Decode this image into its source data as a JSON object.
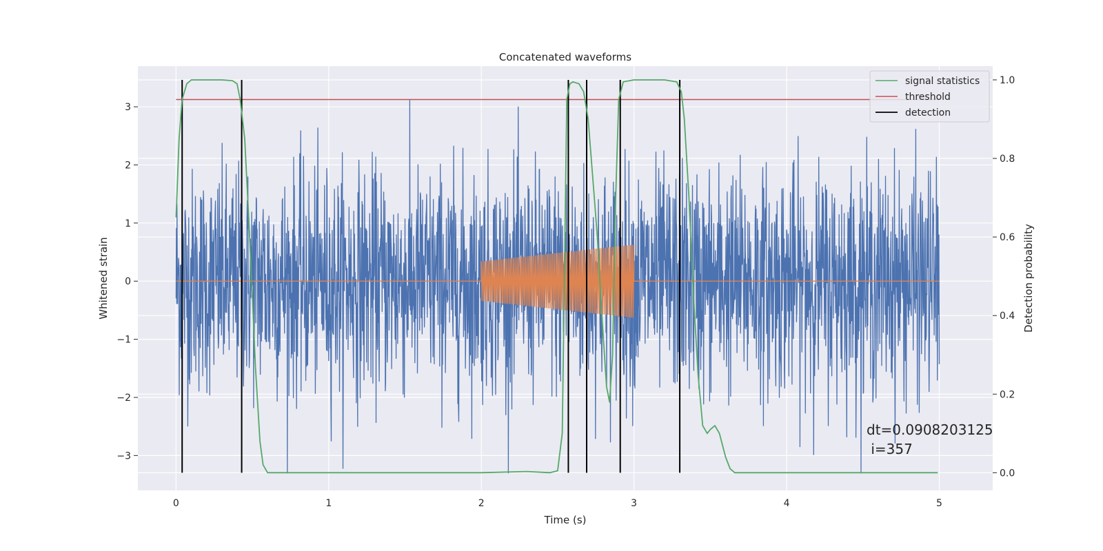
{
  "chart_data": {
    "type": "line",
    "title": "Concatenated waveforms",
    "xlabel": "Time (s)",
    "ylabel": "Whitened strain",
    "y2label": "Detection probability",
    "xlim": [
      -0.25,
      5.35
    ],
    "ylim": [
      -3.6,
      3.7
    ],
    "y2lim": [
      -0.045,
      1.035
    ],
    "xticks": [
      0,
      1,
      2,
      3,
      4,
      5
    ],
    "xtick_labels": [
      "0",
      "1",
      "2",
      "3",
      "4",
      "5"
    ],
    "yticks": [
      -3,
      -2,
      -1,
      0,
      1,
      2,
      3
    ],
    "ytick_labels": [
      "−3",
      "−2",
      "−1",
      "0",
      "1",
      "2",
      "3"
    ],
    "y2ticks": [
      0.0,
      0.2,
      0.4,
      0.6,
      0.8,
      1.0
    ],
    "y2tick_labels": [
      "0.0",
      "0.2",
      "0.4",
      "0.6",
      "0.8",
      "1.0"
    ],
    "grid": true,
    "legend_position": "top-right",
    "colors": {
      "strain": "#4c72b0",
      "injection": "#dd8452",
      "signal_statistics": "#55a868",
      "threshold": "#c44e52",
      "detection": "#000000",
      "plot_background": "#eaeaf2",
      "grid": "#ffffff"
    },
    "noise_series": {
      "axis": "left",
      "x_range": [
        0,
        5
      ],
      "amplitude_range": [
        -3.3,
        3.3
      ]
    },
    "injection_series": {
      "axis": "left",
      "x_range": [
        2.0,
        3.0
      ],
      "amplitude_start": 0.34,
      "amplitude_end": 0.63
    },
    "series": [
      {
        "name": "signal statistics",
        "axis": "right",
        "points": [
          [
            0.0,
            0.65
          ],
          [
            0.02,
            0.85
          ],
          [
            0.04,
            0.95
          ],
          [
            0.07,
            0.99
          ],
          [
            0.1,
            1.0
          ],
          [
            0.2,
            1.0
          ],
          [
            0.3,
            1.0
          ],
          [
            0.37,
            0.998
          ],
          [
            0.4,
            0.99
          ],
          [
            0.42,
            0.95
          ],
          [
            0.45,
            0.85
          ],
          [
            0.48,
            0.62
          ],
          [
            0.5,
            0.45
          ],
          [
            0.52,
            0.27
          ],
          [
            0.55,
            0.08
          ],
          [
            0.57,
            0.02
          ],
          [
            0.6,
            0.0
          ],
          [
            1.0,
            0.0
          ],
          [
            1.5,
            0.0
          ],
          [
            2.0,
            0.0
          ],
          [
            2.3,
            0.003
          ],
          [
            2.45,
            0.0
          ],
          [
            2.5,
            0.005
          ],
          [
            2.53,
            0.1
          ],
          [
            2.56,
            0.95
          ],
          [
            2.58,
            0.99
          ],
          [
            2.6,
            0.995
          ],
          [
            2.64,
            0.99
          ],
          [
            2.67,
            0.97
          ],
          [
            2.7,
            0.9
          ],
          [
            2.73,
            0.75
          ],
          [
            2.76,
            0.6
          ],
          [
            2.79,
            0.4
          ],
          [
            2.82,
            0.22
          ],
          [
            2.84,
            0.18
          ],
          [
            2.86,
            0.3
          ],
          [
            2.88,
            0.7
          ],
          [
            2.9,
            0.95
          ],
          [
            2.93,
            0.995
          ],
          [
            3.0,
            1.0
          ],
          [
            3.2,
            1.0
          ],
          [
            3.28,
            0.995
          ],
          [
            3.31,
            0.97
          ],
          [
            3.33,
            0.9
          ],
          [
            3.36,
            0.7
          ],
          [
            3.39,
            0.45
          ],
          [
            3.42,
            0.25
          ],
          [
            3.45,
            0.12
          ],
          [
            3.48,
            0.1
          ],
          [
            3.5,
            0.11
          ],
          [
            3.53,
            0.12
          ],
          [
            3.56,
            0.1
          ],
          [
            3.6,
            0.04
          ],
          [
            3.63,
            0.01
          ],
          [
            3.66,
            0.0
          ],
          [
            4.0,
            0.0
          ],
          [
            4.5,
            0.0
          ],
          [
            4.99,
            0.0
          ]
        ]
      },
      {
        "name": "threshold",
        "axis": "right",
        "x": [
          0,
          5
        ],
        "value": 0.95
      },
      {
        "name": "detection",
        "axis": "right",
        "x_positions": [
          0.04,
          0.43,
          2.57,
          2.69,
          2.91,
          3.3
        ],
        "y_range": [
          0.0,
          1.0
        ]
      }
    ],
    "annotations": [
      "dt=0.0908203125",
      " i=357"
    ]
  }
}
